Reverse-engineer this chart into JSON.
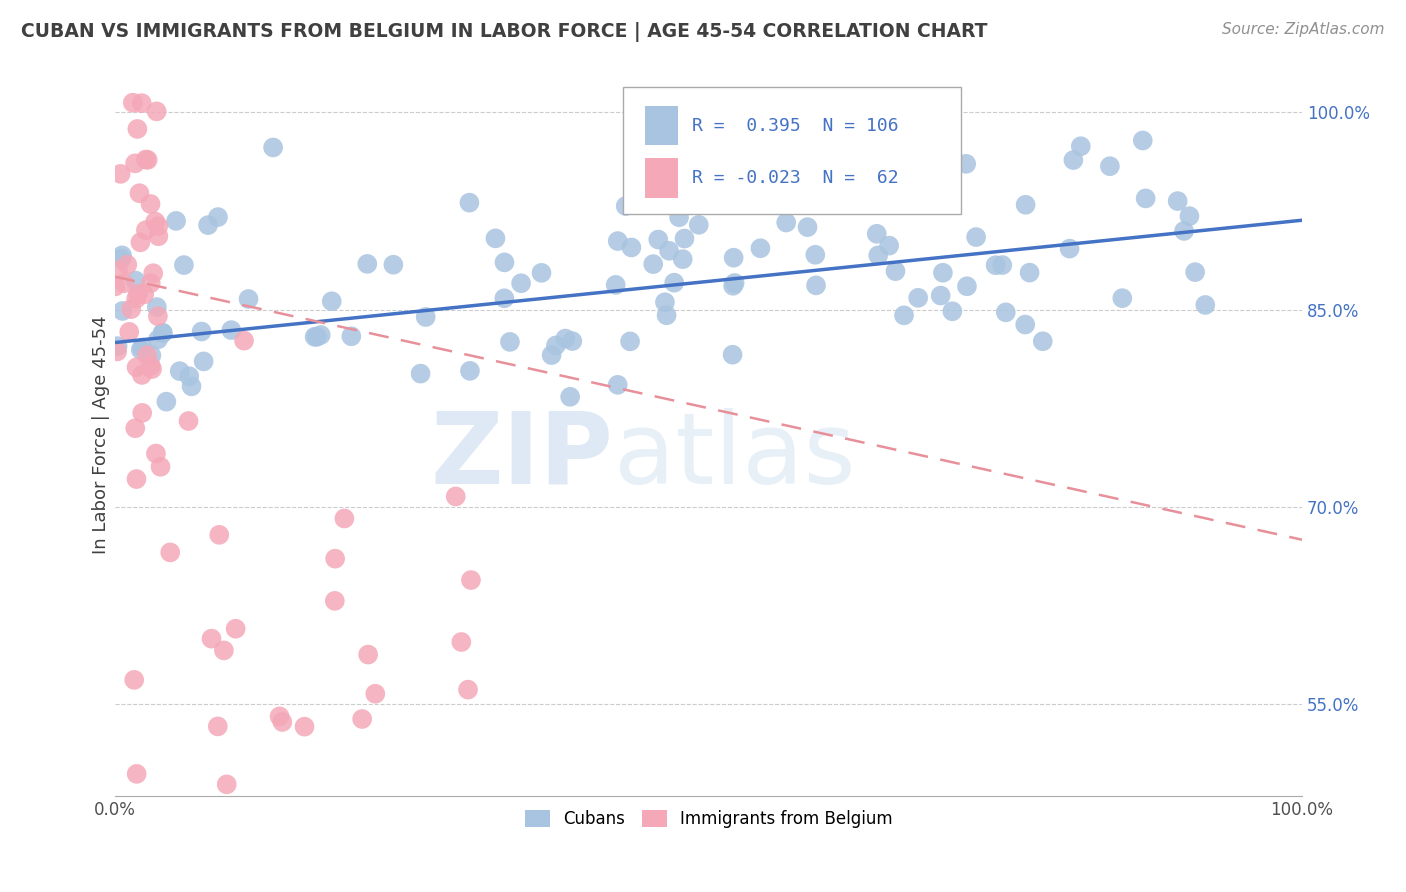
{
  "title": "CUBAN VS IMMIGRANTS FROM BELGIUM IN LABOR FORCE | AGE 45-54 CORRELATION CHART",
  "source": "Source: ZipAtlas.com",
  "ylabel": "In Labor Force | Age 45-54",
  "xlim": [
    0.0,
    1.0
  ],
  "ylim": [
    0.48,
    1.03
  ],
  "yticks": [
    0.55,
    0.7,
    0.85,
    1.0
  ],
  "ytick_labels": [
    "55.0%",
    "70.0%",
    "85.0%",
    "100.0%"
  ],
  "xtick_labels": [
    "0.0%",
    "100.0%"
  ],
  "xticks": [
    0.0,
    1.0
  ],
  "blue_R": 0.395,
  "blue_N": 106,
  "pink_R": -0.023,
  "pink_N": 62,
  "blue_color": "#a8c4e0",
  "pink_color": "#f4a8b8",
  "blue_line_color": "#4472c4",
  "pink_line_color": "#e8909a",
  "legend_label_blue": "Cubans",
  "legend_label_pink": "Immigrants from Belgium",
  "watermark_zip": "ZIP",
  "watermark_atlas": "atlas",
  "background_color": "#ffffff",
  "grid_color": "#cccccc",
  "title_color": "#404040",
  "source_color": "#909090",
  "blue_trend_start_y": 0.825,
  "blue_trend_end_y": 0.918,
  "pink_trend_start_y": 0.875,
  "pink_trend_end_y": 0.675
}
